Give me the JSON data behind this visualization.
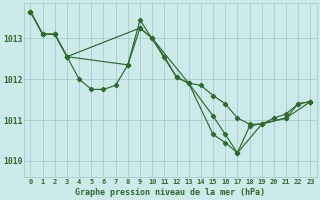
{
  "title": "Graphe pression niveau de la mer (hPa)",
  "bg_color": "#cceaea",
  "grid_color": "#aacccc",
  "line_color": "#2d6a2d",
  "ylim": [
    1009.6,
    1013.85
  ],
  "yticks": [
    1010,
    1011,
    1012,
    1013
  ],
  "series1_x": [
    0,
    1,
    2,
    3,
    4,
    5,
    6,
    7,
    8,
    9,
    10,
    11,
    12,
    13,
    14,
    15,
    16,
    17,
    18,
    19,
    20,
    21,
    22,
    23
  ],
  "series1_y": [
    1013.65,
    1013.1,
    1013.1,
    1012.55,
    1012.0,
    1011.75,
    1011.75,
    1011.85,
    1012.35,
    1013.25,
    1013.0,
    1012.55,
    1012.05,
    1011.9,
    1011.85,
    1011.6,
    1011.4,
    1011.05,
    1010.9,
    1010.9,
    1011.05,
    1011.15,
    1011.4,
    1011.45
  ],
  "series2_x": [
    0,
    1,
    2,
    3,
    8,
    9,
    12,
    13,
    15,
    16,
    17,
    19,
    21,
    22,
    23
  ],
  "series2_y": [
    1013.65,
    1013.1,
    1013.1,
    1012.55,
    1012.35,
    1013.45,
    1012.05,
    1011.9,
    1010.65,
    1010.45,
    1010.2,
    1010.9,
    1011.05,
    1011.4,
    1011.45
  ],
  "series3_x": [
    0,
    1,
    2,
    3,
    9,
    10,
    13,
    15,
    16,
    17,
    18,
    21,
    23
  ],
  "series3_y": [
    1013.65,
    1013.1,
    1013.1,
    1012.55,
    1013.25,
    1013.0,
    1011.9,
    1011.1,
    1010.65,
    1010.2,
    1010.85,
    1011.05,
    1011.45
  ]
}
